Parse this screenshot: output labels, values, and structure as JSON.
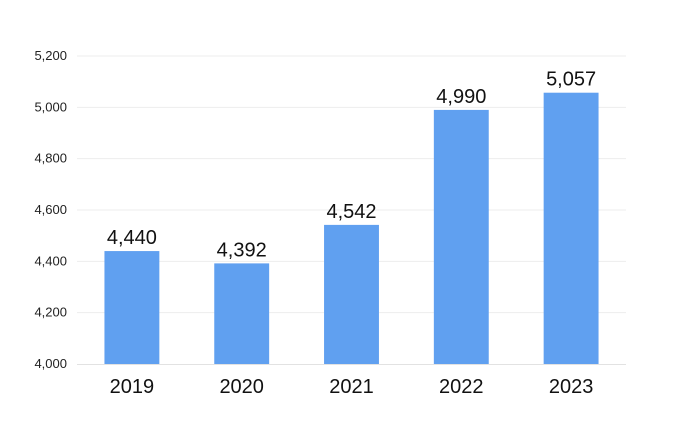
{
  "chart_data": {
    "type": "bar",
    "title": "",
    "xlabel": "",
    "ylabel": "",
    "categories": [
      "2019",
      "2020",
      "2021",
      "2022",
      "2023"
    ],
    "values": [
      4440,
      4392,
      4542,
      4990,
      5057
    ],
    "value_labels": [
      "4,440",
      "4,392",
      "4,542",
      "4,990",
      "5,057"
    ],
    "ylim": [
      4000,
      5200
    ],
    "yticks": [
      4000,
      4200,
      4400,
      4600,
      4800,
      5000,
      5200
    ],
    "ytick_labels": [
      "4,000",
      "4,200",
      "4,400",
      "4,600",
      "4,800",
      "5,000",
      "5,200"
    ],
    "grid": true,
    "legend": "none",
    "bar_color": "#60a0f0",
    "grid_color": "#ededed"
  }
}
